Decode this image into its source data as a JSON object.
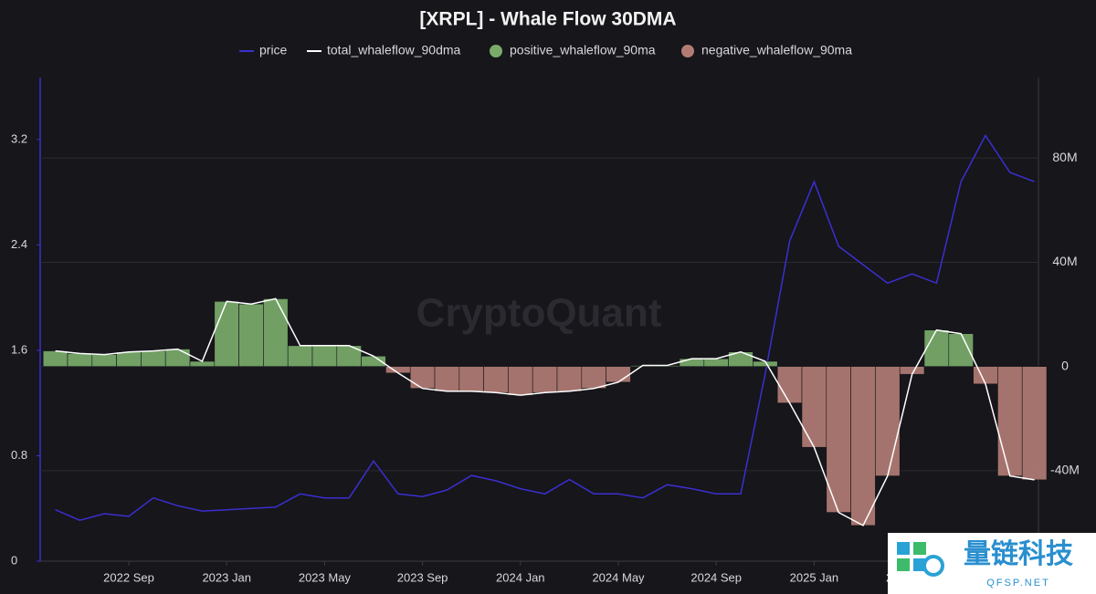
{
  "chart_data": {
    "type": "dual_axis_line_area",
    "title": "[XRPL] - Whale Flow 30DMA",
    "x": [
      "2022 Jun",
      "2022 Jul",
      "2022 Aug",
      "2022 Sep",
      "2022 Oct",
      "2022 Nov",
      "2022 Dec",
      "2023 Jan",
      "2023 Feb",
      "2023 Mar",
      "2023 Apr",
      "2023 May",
      "2023 Jun",
      "2023 Jul",
      "2023 Aug",
      "2023 Sep",
      "2023 Oct",
      "2023 Nov",
      "2023 Dec",
      "2024 Jan",
      "2024 Feb",
      "2024 Mar",
      "2024 Apr",
      "2024 May",
      "2024 Jun",
      "2024 Jul",
      "2024 Aug",
      "2024 Sep",
      "2024 Oct",
      "2024 Nov",
      "2024 Dec",
      "2025 Jan",
      "2025 Feb",
      "2025 Mar",
      "2025 Apr",
      "2025 May",
      "2025 Jun",
      "2025 Jul",
      "2025 Aug",
      "2025 Sep",
      "2025 Oct"
    ],
    "xticks": [
      "2022 Sep",
      "2023 Jan",
      "2023 May",
      "2023 Sep",
      "2024 Jan",
      "2024 May",
      "2024 Sep",
      "2025 Jan",
      "2025 May"
    ],
    "series": [
      {
        "name": "price",
        "color": "#3b2fd0",
        "axis": "y",
        "values": [
          0.39,
          0.31,
          0.36,
          0.34,
          0.48,
          0.42,
          0.38,
          0.39,
          0.4,
          0.41,
          0.51,
          0.48,
          0.48,
          0.76,
          0.51,
          0.49,
          0.54,
          0.65,
          0.61,
          0.55,
          0.51,
          0.62,
          0.51,
          0.51,
          0.48,
          0.58,
          0.55,
          0.51,
          0.51,
          1.42,
          2.43,
          2.88,
          2.39,
          2.25,
          2.11,
          2.18,
          2.11,
          2.88,
          3.23,
          2.95,
          2.88
        ]
      },
      {
        "name": "total_whaleflow_90dma",
        "color": "#ffffff",
        "axis": "y2",
        "values": [
          6,
          5,
          4.6,
          5.6,
          6,
          6.7,
          2,
          25,
          24,
          26,
          8,
          8,
          8,
          4,
          -2.5,
          -8.4,
          -9.5,
          -9.5,
          -10,
          -11,
          -10,
          -9.5,
          -8.4,
          -6,
          0.4,
          0.4,
          3,
          3,
          5.6,
          2,
          -14,
          -31,
          -56,
          -61,
          -42,
          -3,
          14,
          12.6,
          -6.7,
          -42,
          -43.5
        ]
      }
    ],
    "fill_legend": [
      {
        "name": "positive_whaleflow_90ma",
        "color": "#7aab6a"
      },
      {
        "name": "negative_whaleflow_90ma",
        "color": "#b27c74"
      }
    ],
    "ylim": [
      0,
      3.67
    ],
    "yticks": [
      0,
      0.8,
      1.6,
      2.4,
      3.2
    ],
    "y2lim": [
      -74.7,
      110.9
    ],
    "y2ticks": [
      {
        "value": -40,
        "label": "-40M"
      },
      0,
      {
        "value": 40,
        "label": "40M"
      },
      {
        "value": 80,
        "label": "80M"
      }
    ],
    "grid": true,
    "watermarks": [
      "CryptoQuant",
      "量链科技",
      "QFSP.NET"
    ]
  }
}
